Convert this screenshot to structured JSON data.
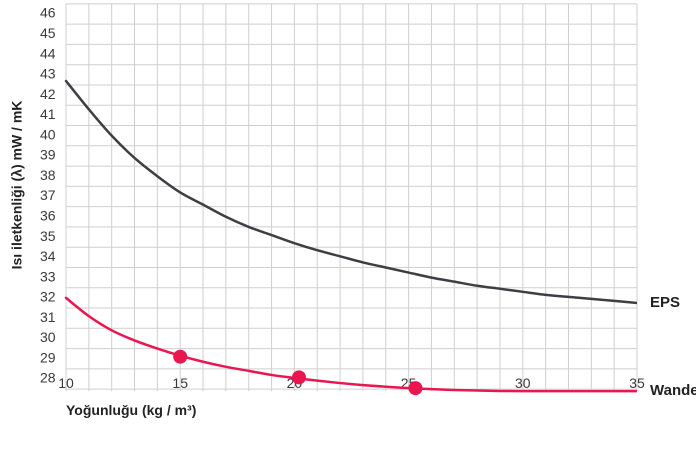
{
  "chart_data": {
    "type": "line",
    "xlabel": "Yoğunluğu (kg / m³)",
    "ylabel": "Isı iletkenliği (λ) mW / mK",
    "xlim": [
      10,
      35
    ],
    "ylim": [
      28,
      46
    ],
    "x_ticks": [
      "10",
      "15",
      "20",
      "25",
      "30",
      "35"
    ],
    "y_ticks": [
      "46",
      "45",
      "44",
      "43",
      "42",
      "41",
      "40",
      "39",
      "38",
      "37",
      "36",
      "35",
      "34",
      "33",
      "32",
      "31",
      "30",
      "29",
      "28"
    ],
    "grid": true,
    "series": [
      {
        "name": "EPS",
        "color": "#3e3e44",
        "points": [
          [
            10,
            42.7
          ],
          [
            11,
            41.3
          ],
          [
            12,
            40.0
          ],
          [
            13,
            38.9
          ],
          [
            14,
            38.0
          ],
          [
            15,
            37.2
          ],
          [
            16,
            36.6
          ],
          [
            17,
            36.0
          ],
          [
            18,
            35.5
          ],
          [
            19,
            35.1
          ],
          [
            20,
            34.7
          ],
          [
            21,
            34.35
          ],
          [
            22,
            34.05
          ],
          [
            23,
            33.75
          ],
          [
            24,
            33.5
          ],
          [
            25,
            33.25
          ],
          [
            26,
            33.0
          ],
          [
            27,
            32.8
          ],
          [
            28,
            32.6
          ],
          [
            29,
            32.45
          ],
          [
            30,
            32.3
          ],
          [
            31,
            32.15
          ],
          [
            32,
            32.05
          ],
          [
            33,
            31.95
          ],
          [
            34,
            31.85
          ],
          [
            35,
            31.75
          ]
        ],
        "markers": []
      },
      {
        "name": "Wandelit",
        "color": "#e8174f",
        "points": [
          [
            10,
            32.0
          ],
          [
            11,
            31.1
          ],
          [
            12,
            30.4
          ],
          [
            13,
            29.9
          ],
          [
            14,
            29.5
          ],
          [
            15,
            29.15
          ],
          [
            16,
            28.85
          ],
          [
            17,
            28.6
          ],
          [
            18,
            28.4
          ],
          [
            19,
            28.2
          ],
          [
            20,
            28.05
          ],
          [
            21,
            27.92
          ],
          [
            22,
            27.8
          ],
          [
            23,
            27.7
          ],
          [
            24,
            27.62
          ],
          [
            25,
            27.55
          ],
          [
            26,
            27.5
          ],
          [
            27,
            27.46
          ],
          [
            28,
            27.43
          ],
          [
            29,
            27.41
          ],
          [
            30,
            27.4
          ],
          [
            31,
            27.4
          ],
          [
            32,
            27.4
          ],
          [
            33,
            27.4
          ],
          [
            34,
            27.4
          ],
          [
            35,
            27.4
          ]
        ],
        "markers": [
          [
            15,
            29.1
          ],
          [
            20.2,
            28.08
          ],
          [
            25.3,
            27.55
          ]
        ]
      }
    ]
  }
}
